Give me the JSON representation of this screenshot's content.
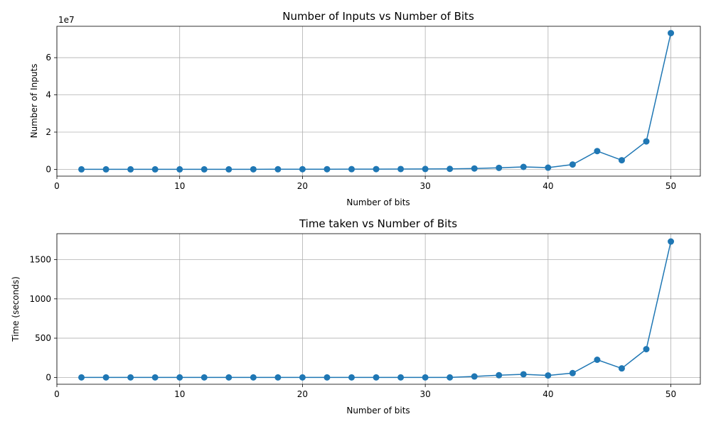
{
  "chart_data": [
    {
      "type": "line",
      "title": "Number of Inputs vs Number of Bits",
      "xlabel": "Number of bits",
      "ylabel": "Number of Inputs",
      "offset_text": "1e7",
      "xlim": [
        0,
        52.4
      ],
      "ylim": [
        -3660000,
        76860000
      ],
      "x_ticks": [
        0,
        10,
        20,
        30,
        40,
        50
      ],
      "y_ticks": [
        0,
        20000000,
        40000000,
        60000000
      ],
      "y_tick_labels": [
        "0",
        "2",
        "4",
        "6"
      ],
      "grid": true,
      "legend": "none",
      "color": "#1f77b4",
      "series": [
        {
          "x": [
            2,
            4,
            6,
            8,
            10,
            12,
            14,
            16,
            18,
            20,
            22,
            24,
            26,
            28,
            30,
            32,
            34,
            36,
            38,
            40,
            42,
            44,
            46,
            48,
            50
          ],
          "y": [
            3,
            14,
            52,
            190,
            680,
            2400,
            8300,
            28000,
            45000,
            60000,
            80000,
            100000,
            130000,
            160000,
            200000,
            250000,
            450000,
            800000,
            1300000,
            900000,
            2600000,
            9800000,
            4900000,
            15000000,
            73200000
          ]
        }
      ]
    },
    {
      "type": "line",
      "title": "Time taken vs Number of Bits",
      "xlabel": "Number of bits",
      "ylabel": "Time (seconds)",
      "xlim": [
        0,
        52.4
      ],
      "ylim": [
        -87,
        1830
      ],
      "x_ticks": [
        0,
        10,
        20,
        30,
        40,
        50
      ],
      "y_ticks": [
        0,
        500,
        1000,
        1500
      ],
      "y_tick_labels": [
        "0",
        "500",
        "1000",
        "1500"
      ],
      "grid": true,
      "legend": "none",
      "color": "#1f77b4",
      "series": [
        {
          "x": [
            2,
            4,
            6,
            8,
            10,
            12,
            14,
            16,
            18,
            20,
            22,
            24,
            26,
            28,
            30,
            32,
            34,
            36,
            38,
            40,
            42,
            44,
            46,
            48,
            50
          ],
          "y": [
            0,
            0,
            0,
            0,
            0,
            0,
            0,
            0,
            0,
            0,
            0,
            0,
            0,
            0,
            0,
            0,
            12,
            28,
            40,
            25,
            55,
            225,
            115,
            360,
            1730
          ]
        }
      ]
    }
  ]
}
